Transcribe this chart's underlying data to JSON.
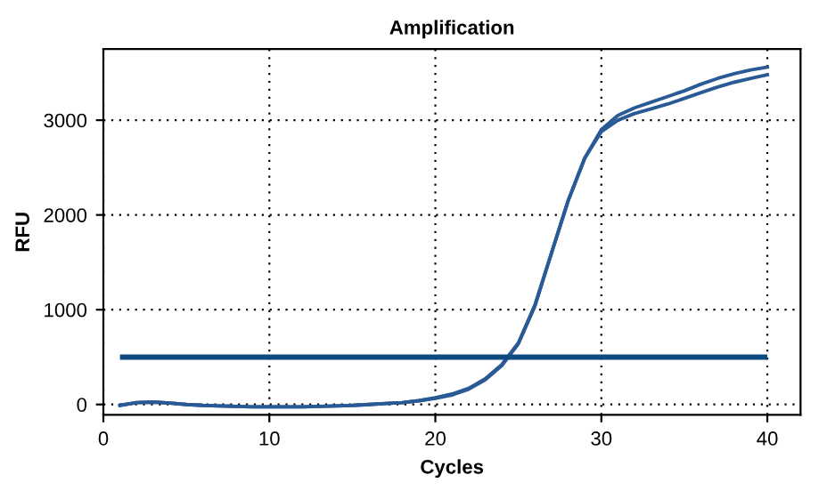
{
  "chart_data": {
    "type": "line",
    "title": "Amplification",
    "xlabel": "Cycles",
    "ylabel": "RFU",
    "x": [
      1,
      2,
      3,
      4,
      5,
      6,
      7,
      8,
      9,
      10,
      11,
      12,
      13,
      14,
      15,
      16,
      17,
      18,
      19,
      20,
      21,
      22,
      23,
      24,
      25,
      26,
      27,
      28,
      29,
      30,
      31,
      32,
      33,
      34,
      35,
      36,
      37,
      38,
      39,
      40
    ],
    "series": [
      {
        "color": "#2a5a96",
        "values": [
          -10,
          20,
          25,
          15,
          0,
          -10,
          -15,
          -20,
          -25,
          -25,
          -25,
          -25,
          -20,
          -15,
          -10,
          0,
          10,
          20,
          40,
          70,
          110,
          170,
          270,
          420,
          650,
          1050,
          1600,
          2150,
          2600,
          2900,
          3050,
          3130,
          3190,
          3250,
          3310,
          3380,
          3440,
          3490,
          3530,
          3560
        ]
      },
      {
        "color": "#2a5a96",
        "values": [
          -10,
          20,
          25,
          15,
          0,
          -10,
          -15,
          -20,
          -25,
          -25,
          -25,
          -25,
          -20,
          -15,
          -10,
          0,
          10,
          20,
          40,
          65,
          100,
          160,
          260,
          410,
          640,
          1040,
          1600,
          2150,
          2600,
          2880,
          3000,
          3070,
          3120,
          3170,
          3230,
          3290,
          3350,
          3400,
          3440,
          3480
        ]
      }
    ],
    "ref_lines": [
      {
        "axis": "y",
        "value": 500,
        "color": "#0d4a80"
      }
    ],
    "xlim": [
      0,
      42
    ],
    "ylim": [
      -110,
      3750
    ],
    "xticks": [
      0,
      10,
      20,
      30,
      40
    ],
    "yticks": [
      0,
      1000,
      2000,
      3000
    ],
    "grid": true,
    "line_style": "solid",
    "marker": "none"
  }
}
